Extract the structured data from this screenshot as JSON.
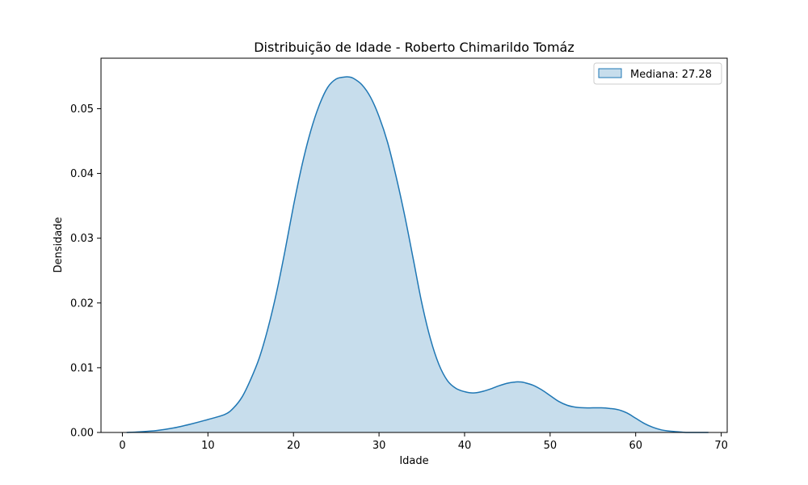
{
  "chart_data": {
    "type": "area",
    "title": "Distribuição de Idade - Roberto Chimarildo Tomáz",
    "xlabel": "Idade",
    "ylabel": "Densidade",
    "xlim": [
      -2.5,
      70.7
    ],
    "ylim": [
      0,
      0.0578
    ],
    "xticks": [
      0,
      10,
      20,
      30,
      40,
      50,
      60,
      70
    ],
    "yticks": [
      0.0,
      0.01,
      0.02,
      0.03,
      0.04,
      0.05
    ],
    "ytick_labels": [
      "0.00",
      "0.01",
      "0.02",
      "0.03",
      "0.04",
      "0.05"
    ],
    "grid": false,
    "legend": {
      "placement": "top-right",
      "entries": [
        "Mediana: 27.28"
      ]
    },
    "series": [
      {
        "name": "Mediana: 27.28",
        "color": "#1f77b4",
        "fill": "#1f77b4",
        "fill_opacity": 0.25,
        "x": [
          0.5,
          2,
          4,
          6,
          8,
          10,
          12,
          13,
          14,
          15,
          16,
          17,
          18,
          19,
          20,
          21,
          22,
          23,
          24,
          25,
          26,
          26.5,
          27,
          28,
          29,
          30,
          31,
          32,
          33,
          34,
          35,
          36,
          37,
          38,
          39,
          40,
          41,
          42,
          43,
          44,
          45,
          46,
          46.5,
          47,
          48,
          49,
          50,
          51,
          52,
          53,
          54,
          55,
          56,
          57,
          58,
          59,
          60,
          61,
          62,
          63,
          64,
          65,
          66,
          67,
          68.5
        ],
        "y": [
          0.0,
          0.0001,
          0.0003,
          0.0007,
          0.0013,
          0.002,
          0.0028,
          0.0038,
          0.0055,
          0.0082,
          0.0115,
          0.016,
          0.0215,
          0.028,
          0.035,
          0.0413,
          0.0465,
          0.0505,
          0.0533,
          0.0546,
          0.0549,
          0.0549,
          0.0547,
          0.0537,
          0.0518,
          0.0488,
          0.0448,
          0.0395,
          0.0335,
          0.0268,
          0.02,
          0.0145,
          0.0105,
          0.008,
          0.0068,
          0.0063,
          0.0061,
          0.0063,
          0.0067,
          0.0072,
          0.0076,
          0.0078,
          0.0078,
          0.0077,
          0.0073,
          0.0066,
          0.0057,
          0.0048,
          0.0042,
          0.0039,
          0.0038,
          0.0038,
          0.0038,
          0.0037,
          0.0035,
          0.003,
          0.0022,
          0.0014,
          0.0008,
          0.0004,
          0.0002,
          0.0001,
          0.0,
          0.0,
          0.0
        ]
      }
    ]
  }
}
